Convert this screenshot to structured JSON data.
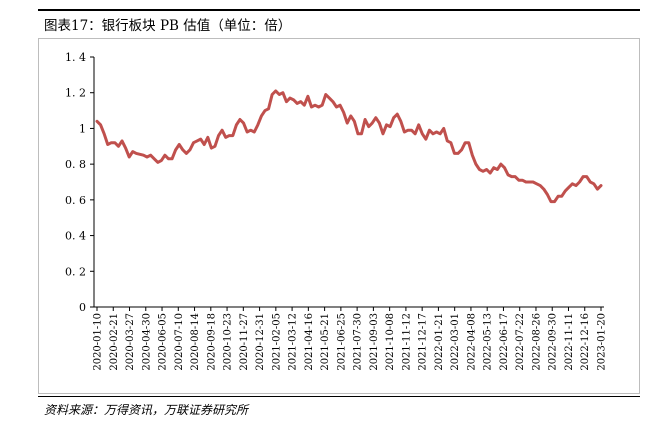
{
  "figure": {
    "title": "图表17：银行板块 PB 估值（单位：倍）",
    "source": "资料来源：万得资讯，万联证券研究所"
  },
  "chart_data": {
    "type": "line",
    "title": "",
    "xlabel": "",
    "ylabel": "",
    "ylim": [
      0,
      1.4
    ],
    "yticks": [
      0,
      0.2,
      0.4,
      0.6,
      0.8,
      1,
      1.2,
      1.4
    ],
    "ytick_labels": [
      "0",
      "0. 2",
      "0. 4",
      "0. 6",
      "0. 8",
      "1",
      "1. 2",
      "1. 4"
    ],
    "grid": false,
    "legend": "none",
    "line_color": "#C0504D",
    "xtick_labels": [
      "2020-01-10",
      "2020-02-21",
      "2020-03-27",
      "2020-04-30",
      "2020-06-05",
      "2020-07-10",
      "2020-08-14",
      "2020-09-18",
      "2020-10-23",
      "2020-11-27",
      "2020-12-31",
      "2021-02-05",
      "2021-03-12",
      "2021-04-16",
      "2021-05-21",
      "2021-06-25",
      "2021-07-30",
      "2021-09-03",
      "2021-10-08",
      "2021-11-12",
      "2021-12-17",
      "2022-01-21",
      "2022-03-01",
      "2022-04-08",
      "2022-05-13",
      "2022-06-17",
      "2022-07-22",
      "2022-08-26",
      "2022-09-30",
      "2022-11-11",
      "2022-12-16",
      "2023-01-20"
    ],
    "series": [
      {
        "values": [
          1.04,
          1.02,
          0.97,
          0.91,
          0.92,
          0.92,
          0.9,
          0.93,
          0.89,
          0.84,
          0.87,
          0.86,
          0.855,
          0.85,
          0.84,
          0.85,
          0.83,
          0.81,
          0.82,
          0.85,
          0.83,
          0.83,
          0.88,
          0.91,
          0.88,
          0.86,
          0.88,
          0.92,
          0.93,
          0.94,
          0.91,
          0.95,
          0.89,
          0.9,
          0.96,
          0.99,
          0.95,
          0.96,
          0.96,
          1.02,
          1.05,
          1.03,
          0.98,
          0.99,
          0.98,
          1.02,
          1.07,
          1.1,
          1.11,
          1.19,
          1.21,
          1.19,
          1.2,
          1.15,
          1.17,
          1.16,
          1.14,
          1.15,
          1.13,
          1.18,
          1.12,
          1.13,
          1.12,
          1.13,
          1.19,
          1.17,
          1.15,
          1.12,
          1.13,
          1.09,
          1.03,
          1.07,
          1.04,
          0.97,
          0.97,
          1.05,
          1.01,
          1.03,
          1.06,
          1.03,
          0.97,
          1.02,
          1.01,
          1.06,
          1.08,
          1.04,
          0.98,
          0.99,
          0.99,
          0.97,
          1.02,
          0.97,
          0.94,
          0.99,
          0.97,
          0.98,
          0.97,
          1.0,
          0.93,
          0.92,
          0.86,
          0.86,
          0.88,
          0.92,
          0.92,
          0.85,
          0.8,
          0.77,
          0.76,
          0.77,
          0.75,
          0.78,
          0.77,
          0.8,
          0.78,
          0.74,
          0.73,
          0.73,
          0.71,
          0.71,
          0.7,
          0.7,
          0.7,
          0.69,
          0.68,
          0.66,
          0.63,
          0.59,
          0.59,
          0.62,
          0.62,
          0.65,
          0.67,
          0.69,
          0.68,
          0.7,
          0.73,
          0.73,
          0.7,
          0.69,
          0.66,
          0.68
        ]
      }
    ]
  }
}
